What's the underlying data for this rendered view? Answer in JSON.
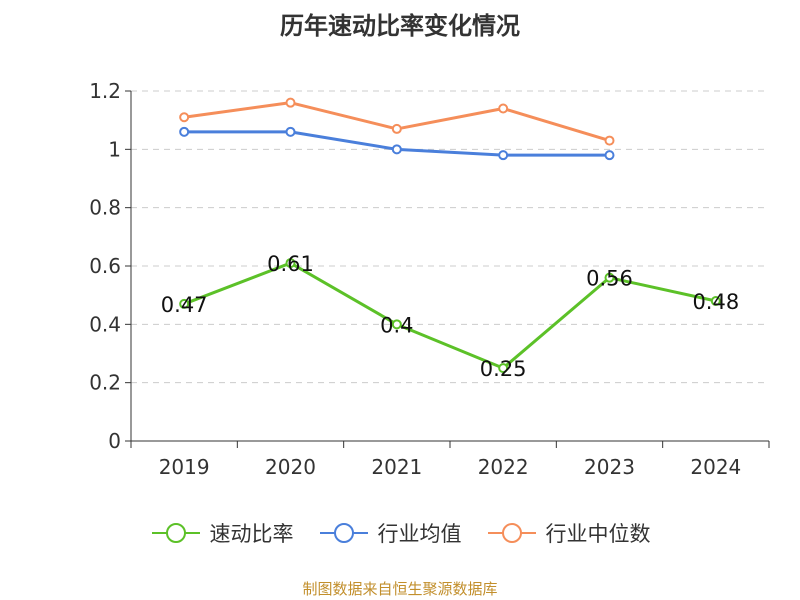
{
  "chart_data": {
    "type": "line",
    "title": "历年速动比率变化情况",
    "categories": [
      "2019",
      "2020",
      "2021",
      "2022",
      "2023",
      "2024"
    ],
    "ylim": [
      0,
      1.2
    ],
    "yticks": [
      "0",
      "0.2",
      "0.4",
      "0.6",
      "0.8",
      "1",
      "1.2"
    ],
    "grid": true,
    "legend_position": "bottom",
    "series": [
      {
        "name": "速动比率",
        "color": "#5cc128",
        "values": [
          0.47,
          0.61,
          0.4,
          0.25,
          0.56,
          0.48
        ],
        "data_labels": [
          "0.47",
          "0.61",
          "0.4",
          "0.25",
          "0.56",
          "0.48"
        ]
      },
      {
        "name": "行业均值",
        "color": "#4a7fdb",
        "values": [
          1.06,
          1.06,
          1.0,
          0.98,
          0.98,
          null
        ]
      },
      {
        "name": "行业中位数",
        "color": "#f58e5a",
        "values": [
          1.11,
          1.16,
          1.07,
          1.14,
          1.03,
          null
        ]
      }
    ]
  },
  "source_text": "制图数据来自恒生聚源数据库"
}
